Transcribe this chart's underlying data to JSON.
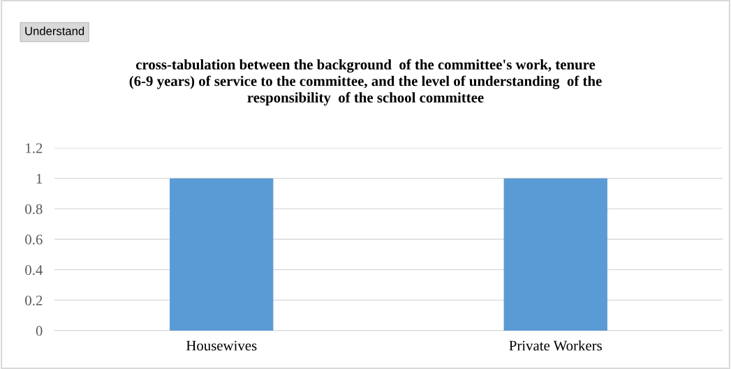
{
  "chart_data": {
    "type": "bar",
    "title": "cross-tabulation between the background  of the committee's work, tenure\n(6-9 years) of service to the committee, and the level of understanding  of the\nresponsibility  of the school committee",
    "annotations": [
      "Understand"
    ],
    "categories": [
      "Housewives",
      "Private Workers"
    ],
    "values": [
      1,
      1
    ],
    "color": "#5b9bd5",
    "ylim": [
      0,
      1.2
    ],
    "yticks": [
      {
        "value": 0,
        "label": "0"
      },
      {
        "value": 0.2,
        "label": "0.2"
      },
      {
        "value": 0.4,
        "label": "0.4"
      },
      {
        "value": 0.6,
        "label": "0.6"
      },
      {
        "value": 0.8,
        "label": "0.8"
      },
      {
        "value": 1,
        "label": "1"
      },
      {
        "value": 1.2,
        "label": "1.2"
      }
    ],
    "grid": "y",
    "legend": false
  }
}
